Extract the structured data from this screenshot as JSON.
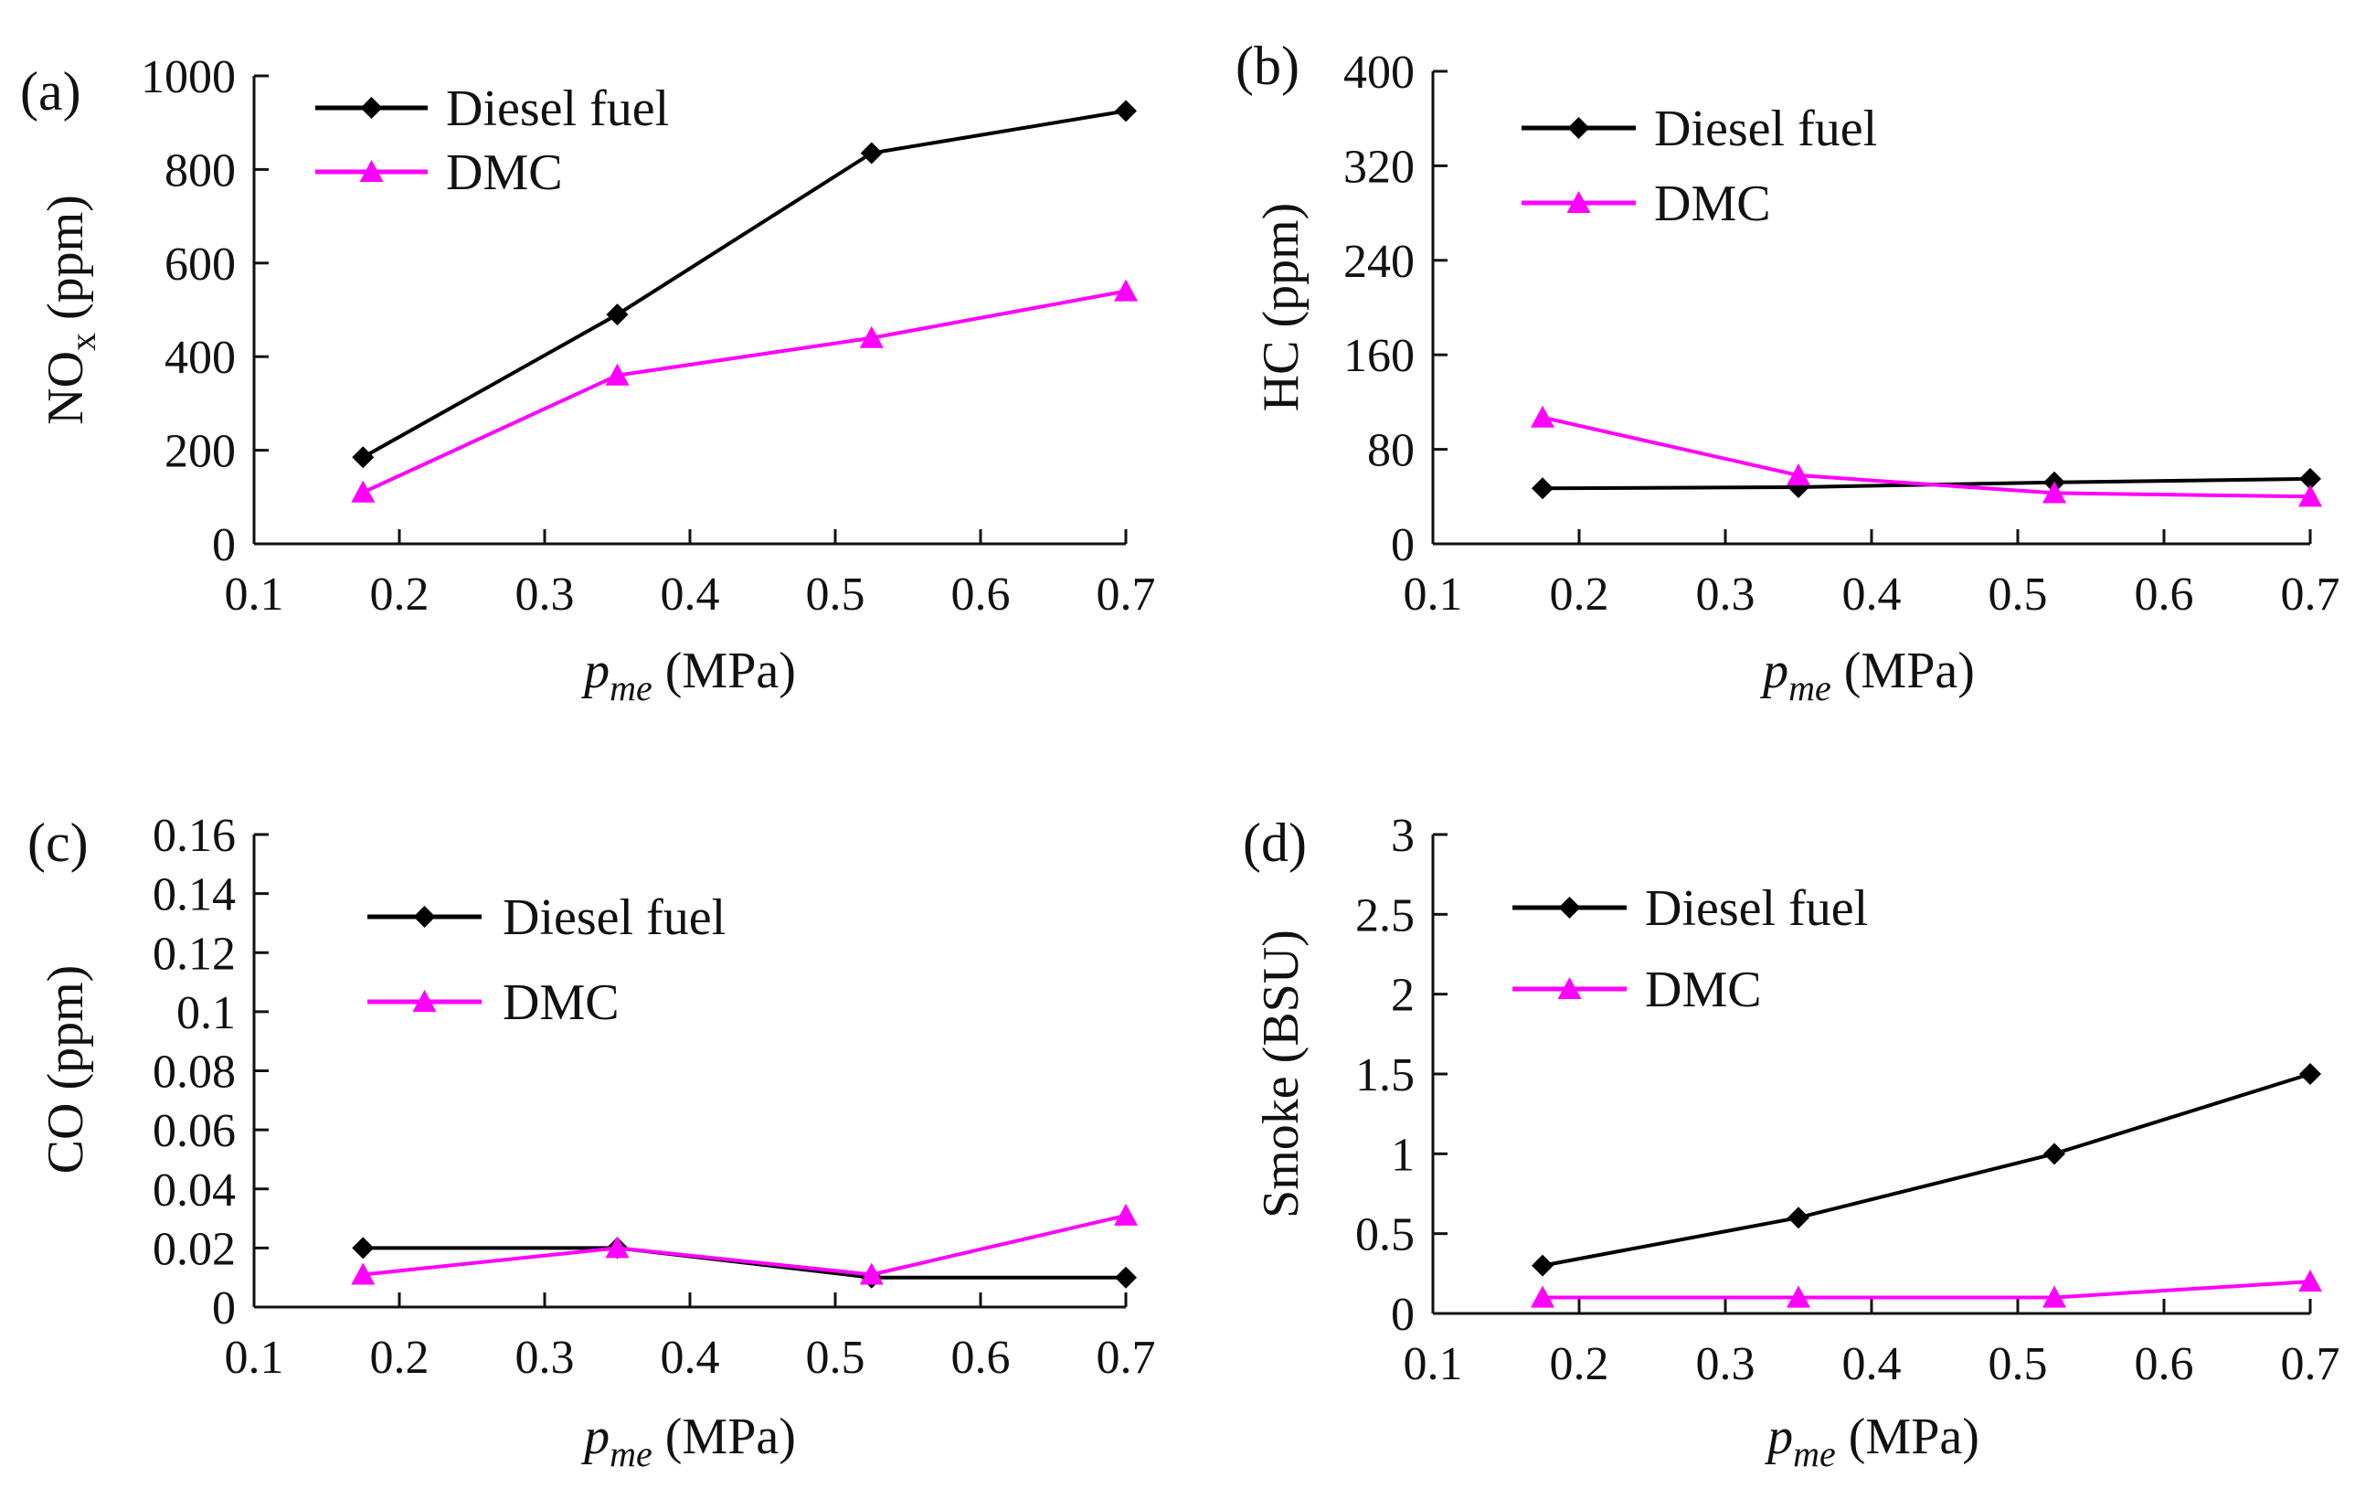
{
  "colors": {
    "diesel": "#000000",
    "dmc": "#ff00ff",
    "axis": "#111111"
  },
  "chart_data": [
    {
      "type": "line",
      "panel_label": "(a)",
      "ylabel": "NO",
      "ylabel_sub": "x",
      "ylabel_unit": "(ppm)",
      "xlabel_main": "p",
      "xlabel_sub": "me",
      "xlabel_unit": "(MPa)",
      "xlim": [
        0.1,
        0.7
      ],
      "ylim": [
        0,
        1000
      ],
      "xticks": [
        0.1,
        0.2,
        0.3,
        0.4,
        0.5,
        0.6,
        0.7
      ],
      "xtick_labels": [
        "0.1",
        "0.2",
        "0.3",
        "0.4",
        "0.5",
        "0.6",
        "0.7"
      ],
      "yticks": [
        0,
        200,
        400,
        600,
        800,
        1000
      ],
      "ytick_labels": [
        "0",
        "200",
        "400",
        "600",
        "800",
        "1000"
      ],
      "x": [
        0.175,
        0.35,
        0.525,
        0.7
      ],
      "series": [
        {
          "name": "Diesel fuel",
          "values": [
            185,
            490,
            835,
            925
          ]
        },
        {
          "name": "DMC",
          "values": [
            110,
            360,
            440,
            540
          ]
        }
      ],
      "legend": "top-left"
    },
    {
      "type": "line",
      "panel_label": "(b)",
      "ylabel": "HC",
      "ylabel_sub": "",
      "ylabel_unit": "(ppm)",
      "xlabel_main": "p",
      "xlabel_sub": "me",
      "xlabel_unit": "(MPa)",
      "xlim": [
        0.1,
        0.7
      ],
      "ylim": [
        0,
        400
      ],
      "xticks": [
        0.1,
        0.2,
        0.3,
        0.4,
        0.5,
        0.6,
        0.7
      ],
      "xtick_labels": [
        "0.1",
        "0.2",
        "0.3",
        "0.4",
        "0.5",
        "0.6",
        "0.7"
      ],
      "yticks": [
        0,
        80,
        160,
        240,
        320,
        400
      ],
      "ytick_labels": [
        "0",
        "80",
        "160",
        "240",
        "320",
        "400"
      ],
      "x": [
        0.175,
        0.35,
        0.525,
        0.7
      ],
      "series": [
        {
          "name": "Diesel fuel",
          "values": [
            47,
            48,
            52,
            55
          ]
        },
        {
          "name": "DMC",
          "values": [
            107,
            58,
            43,
            40
          ]
        }
      ],
      "legend": "top-left"
    },
    {
      "type": "line",
      "panel_label": "(c)",
      "ylabel": "CO",
      "ylabel_sub": "",
      "ylabel_unit": "(ppm)",
      "xlabel_main": "p",
      "xlabel_sub": "me",
      "xlabel_unit": "(MPa)",
      "xlim": [
        0.1,
        0.7
      ],
      "ylim": [
        0,
        0.16
      ],
      "xticks": [
        0.1,
        0.2,
        0.3,
        0.4,
        0.5,
        0.6,
        0.7
      ],
      "xtick_labels": [
        "0.1",
        "0.2",
        "0.3",
        "0.4",
        "0.5",
        "0.6",
        "0.7"
      ],
      "yticks": [
        0,
        0.02,
        0.04,
        0.06,
        0.08,
        0.1,
        0.12,
        0.14,
        0.16
      ],
      "ytick_labels": [
        "0",
        "0.02",
        "0.04",
        "0.06",
        "0.08",
        "0.1",
        "0.12",
        "0.14",
        "0.16"
      ],
      "x": [
        0.175,
        0.35,
        0.525,
        0.7
      ],
      "series": [
        {
          "name": "Diesel fuel",
          "values": [
            0.02,
            0.02,
            0.01,
            0.01
          ]
        },
        {
          "name": "DMC",
          "values": [
            0.011,
            0.02,
            0.011,
            0.031
          ]
        }
      ],
      "legend": "top-center"
    },
    {
      "type": "line",
      "panel_label": "(d)",
      "ylabel": "Smoke",
      "ylabel_sub": "",
      "ylabel_unit": "(BSU)",
      "xlabel_main": "p",
      "xlabel_sub": "me",
      "xlabel_unit": "(MPa)",
      "xlim": [
        0.1,
        0.7
      ],
      "ylim": [
        0,
        3
      ],
      "xticks": [
        0.1,
        0.2,
        0.3,
        0.4,
        0.5,
        0.6,
        0.7
      ],
      "xtick_labels": [
        "0.1",
        "0.2",
        "0.3",
        "0.4",
        "0.5",
        "0.6",
        "0.7"
      ],
      "yticks": [
        0,
        0.5,
        1,
        1.5,
        2,
        2.5,
        3
      ],
      "ytick_labels": [
        "0",
        "0.5",
        "1",
        "1.5",
        "2",
        "2.5",
        "3"
      ],
      "x": [
        0.175,
        0.35,
        0.525,
        0.7
      ],
      "series": [
        {
          "name": "Diesel fuel",
          "values": [
            0.3,
            0.6,
            1.0,
            1.5
          ]
        },
        {
          "name": "DMC",
          "values": [
            0.1,
            0.1,
            0.1,
            0.2
          ]
        }
      ],
      "legend": "top-left"
    }
  ]
}
